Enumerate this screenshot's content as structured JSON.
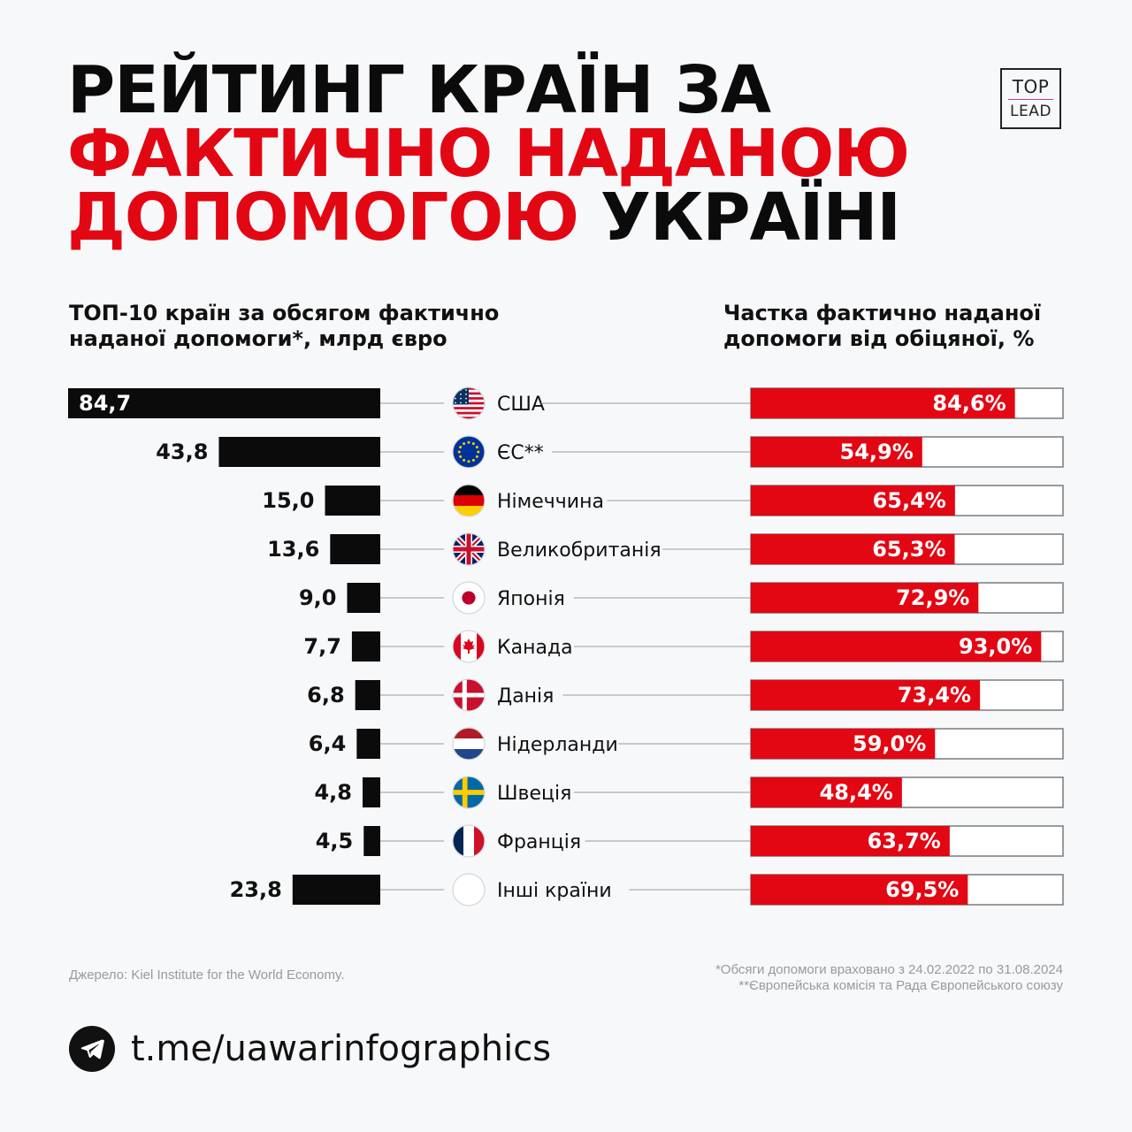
{
  "title": {
    "line1": "РЕЙТИНГ КРАЇН ЗА",
    "line2": "ФАКТИЧНО НАДАНОЮ",
    "line3_red": "ДОПОМОГОЮ",
    "line3_dark": "УКРАЇНІ"
  },
  "logo": {
    "top": "TOP",
    "bottom": "LEAD"
  },
  "subtitles": {
    "left": [
      "ТОП-10 країн за обсягом фактично",
      "наданої допомоги*, млрд євро"
    ],
    "right": [
      "Частка фактично наданої",
      "допомоги від обіцяної, %"
    ]
  },
  "colors": {
    "accent": "#e30613",
    "bar_dark": "#0b0b0b",
    "track": "#ffffff",
    "track_border": "#7a7a7a"
  },
  "chart_data": {
    "type": "bar",
    "title": "Рейтинг країн за фактично наданою допомогою Україні",
    "categories": [
      "США",
      "ЄС**",
      "Німеччина",
      "Великобританія",
      "Японія",
      "Канада",
      "Данія",
      "Нідерланди",
      "Швеція",
      "Франція",
      "Інші країни"
    ],
    "flags": [
      "us-flag-icon",
      "eu-flag-icon",
      "de-flag-icon",
      "gb-flag-icon",
      "jp-flag-icon",
      "ca-flag-icon",
      "dk-flag-icon",
      "nl-flag-icon",
      "se-flag-icon",
      "fr-flag-icon",
      "blank-flag-icon"
    ],
    "series": [
      {
        "name": "ТОП-10 країн за обсягом фактично наданої допомоги*, млрд євро",
        "values": [
          84.7,
          43.8,
          15.0,
          13.6,
          9.0,
          7.7,
          6.8,
          6.4,
          4.8,
          4.5,
          23.8
        ],
        "labels": [
          "84,7",
          "43,8",
          "15,0",
          "13,6",
          "9,0",
          "7,7",
          "6,8",
          "6,4",
          "4,8",
          "4,5",
          "23,8"
        ],
        "xlim": [
          0,
          84.7
        ],
        "direction": "right-to-left"
      },
      {
        "name": "Частка фактично наданої допомоги від обіцяної, %",
        "values": [
          84.6,
          54.9,
          65.4,
          65.3,
          72.9,
          93.0,
          73.4,
          59.0,
          48.4,
          63.7,
          69.5
        ],
        "labels": [
          "84,6%",
          "54,9%",
          "65,4%",
          "65,3%",
          "72,9%",
          "93,0%",
          "73,4%",
          "59,0%",
          "48,4%",
          "63,7%",
          "69,5%"
        ],
        "xlim": [
          0,
          100
        ]
      }
    ]
  },
  "footer": {
    "source": "Джерело: Kiel Institute for the World Economy.",
    "note1": "*Обсяги допомоги враховано з 24.02.2022 по 31.08.2024",
    "note2": "**Європейська комісія та Рада Європейського союзу",
    "telegram": "t.me/uawarinfographics"
  }
}
